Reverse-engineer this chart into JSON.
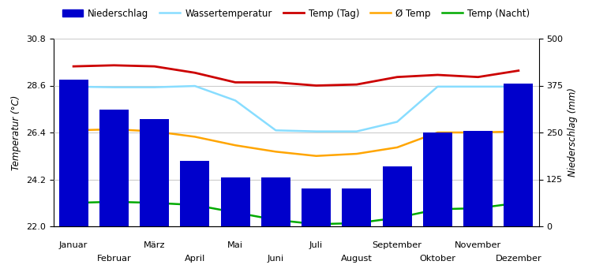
{
  "niederschlag": [
    390,
    310,
    285,
    175,
    130,
    130,
    100,
    100,
    160,
    250,
    255,
    380
  ],
  "wassertemperatur": [
    28.55,
    28.52,
    28.52,
    28.58,
    27.9,
    26.5,
    26.45,
    26.45,
    26.9,
    28.55,
    28.55,
    28.55
  ],
  "temp_tag": [
    29.5,
    29.55,
    29.5,
    29.2,
    28.75,
    28.75,
    28.6,
    28.65,
    29.0,
    29.1,
    29.0,
    29.3
  ],
  "avg_temp": [
    26.5,
    26.55,
    26.45,
    26.2,
    25.8,
    25.5,
    25.3,
    25.4,
    25.7,
    26.4,
    26.4,
    26.45
  ],
  "temp_nacht": [
    23.1,
    23.15,
    23.1,
    23.0,
    22.65,
    22.3,
    22.1,
    22.15,
    22.4,
    22.8,
    22.85,
    23.1
  ],
  "bar_color": "#0000CC",
  "color_wasser": "#88DDFF",
  "color_tag": "#CC0000",
  "color_avg": "#FFA500",
  "color_nacht": "#00AA00",
  "ylabel_left": "Temperatur (°C)",
  "ylabel_right": "Niederschlag (mm)",
  "ylim_left": [
    22.0,
    30.8
  ],
  "ylim_right": [
    0,
    500
  ],
  "yticks_left": [
    22.0,
    24.2,
    26.4,
    28.6,
    30.8
  ],
  "yticks_right": [
    0,
    125,
    250,
    375,
    500
  ],
  "background_color": "#ffffff",
  "grid_color": "#cccccc",
  "months_upper": [
    "Januar",
    "März",
    "Mai",
    "Juli",
    "September",
    "November"
  ],
  "months_lower": [
    "Februar",
    "April",
    "Juni",
    "August",
    "Oktober",
    "Dezember"
  ],
  "legend_labels": [
    "Niederschlag",
    "Wassertemperatur",
    "Temp (Tag)",
    "Ø Temp",
    "Temp (Nacht)"
  ]
}
